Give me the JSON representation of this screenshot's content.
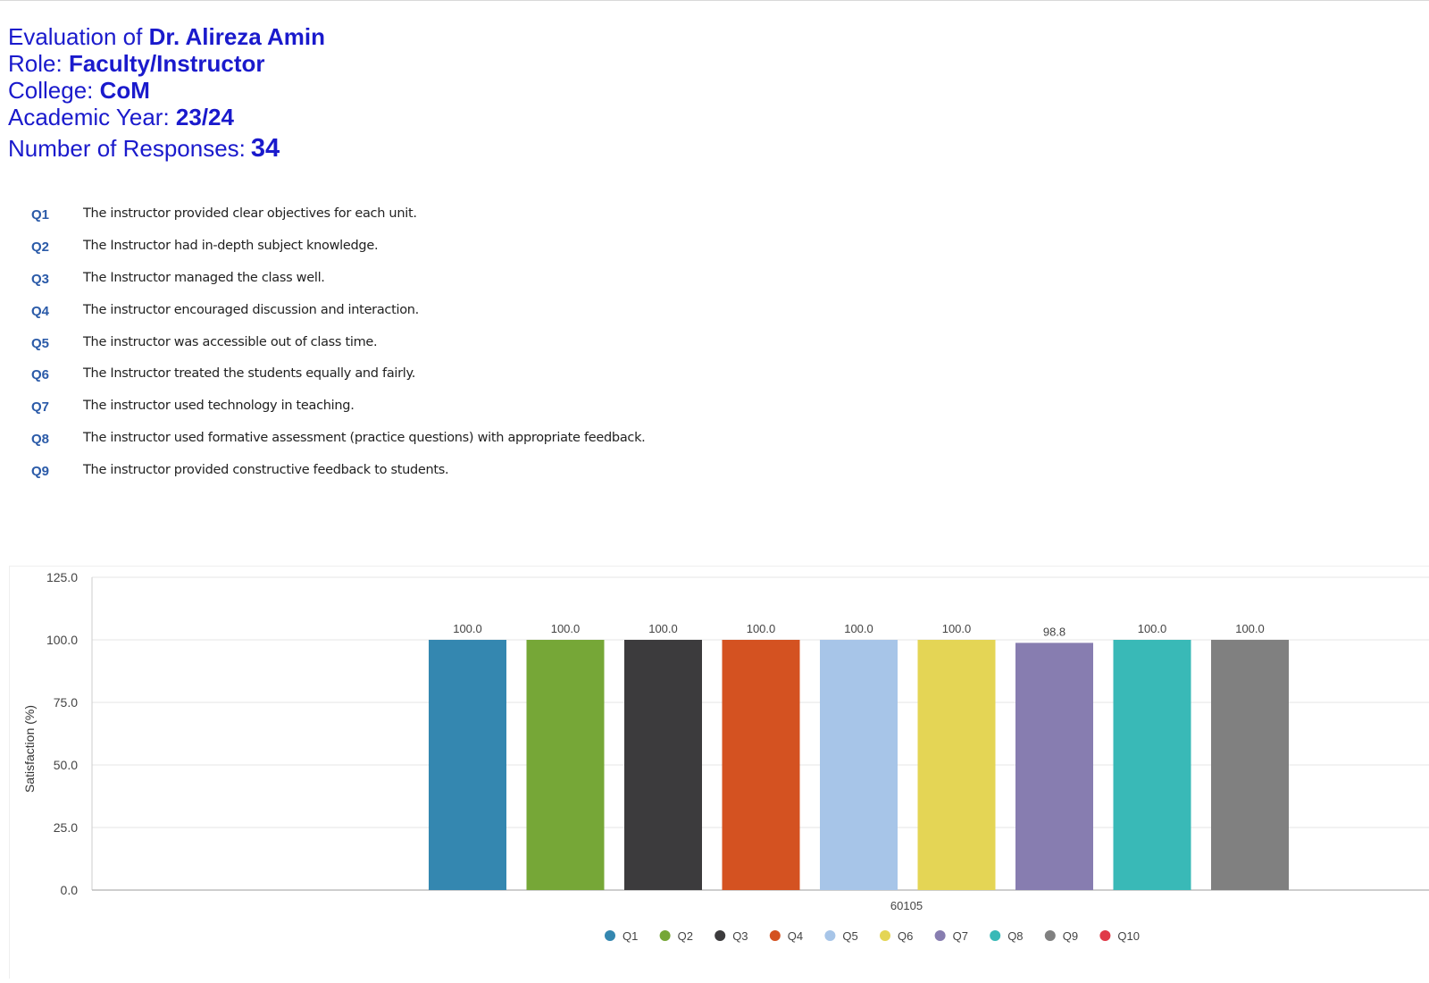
{
  "header": {
    "evaluation_prefix": "Evaluation of",
    "evaluation_name": "Dr. Alireza Amin",
    "role_prefix": "Role:",
    "role_value": "Faculty/Instructor",
    "college_prefix": "College:",
    "college_value": "CoM",
    "year_prefix": "Academic Year:",
    "year_value": "23/24",
    "responses_prefix": "Number of Responses:",
    "responses_value": "34"
  },
  "questions": [
    {
      "id": "Q1",
      "text": "The instructor provided clear objectives for each unit."
    },
    {
      "id": "Q2",
      "text": "The Instructor had in-depth subject knowledge."
    },
    {
      "id": "Q3",
      "text": "The Instructor managed the class well."
    },
    {
      "id": "Q4",
      "text": "The instructor encouraged discussion and interaction."
    },
    {
      "id": "Q5",
      "text": "The instructor was accessible out of class time."
    },
    {
      "id": "Q6",
      "text": "The Instructor treated the students equally and fairly."
    },
    {
      "id": "Q7",
      "text": "The instructor used technology in teaching."
    },
    {
      "id": "Q8",
      "text": "The instructor used formative assessment (practice questions) with appropriate feedback."
    },
    {
      "id": "Q9",
      "text": "The instructor provided constructive feedback to students."
    }
  ],
  "chart_data": {
    "type": "bar",
    "categories": [
      "60105"
    ],
    "ylabel": "Satisfaction (%)",
    "xlabel": "",
    "ylim": [
      0,
      125
    ],
    "yticks": [
      "0.0",
      "25.0",
      "50.0",
      "75.0",
      "100.0",
      "125.0"
    ],
    "grid": true,
    "legend_position": "bottom",
    "series": [
      {
        "name": "Q1",
        "values": [
          100.0
        ],
        "label": "100.0",
        "color": "#3487b0"
      },
      {
        "name": "Q2",
        "values": [
          100.0
        ],
        "label": "100.0",
        "color": "#76a737"
      },
      {
        "name": "Q3",
        "values": [
          100.0
        ],
        "label": "100.0",
        "color": "#3c3b3d"
      },
      {
        "name": "Q4",
        "values": [
          100.0
        ],
        "label": "100.0",
        "color": "#d45221"
      },
      {
        "name": "Q5",
        "values": [
          100.0
        ],
        "label": "100.0",
        "color": "#a7c5e8"
      },
      {
        "name": "Q6",
        "values": [
          100.0
        ],
        "label": "100.0",
        "color": "#e4d555"
      },
      {
        "name": "Q7",
        "values": [
          98.8
        ],
        "label": "98.8",
        "color": "#877db0"
      },
      {
        "name": "Q8",
        "values": [
          100.0
        ],
        "label": "100.0",
        "color": "#39b9b7"
      },
      {
        "name": "Q9",
        "values": [
          100.0
        ],
        "label": "100.0",
        "color": "#808080"
      },
      {
        "name": "Q10",
        "values": [
          null
        ],
        "label": "",
        "color": "#e03a48"
      }
    ]
  }
}
